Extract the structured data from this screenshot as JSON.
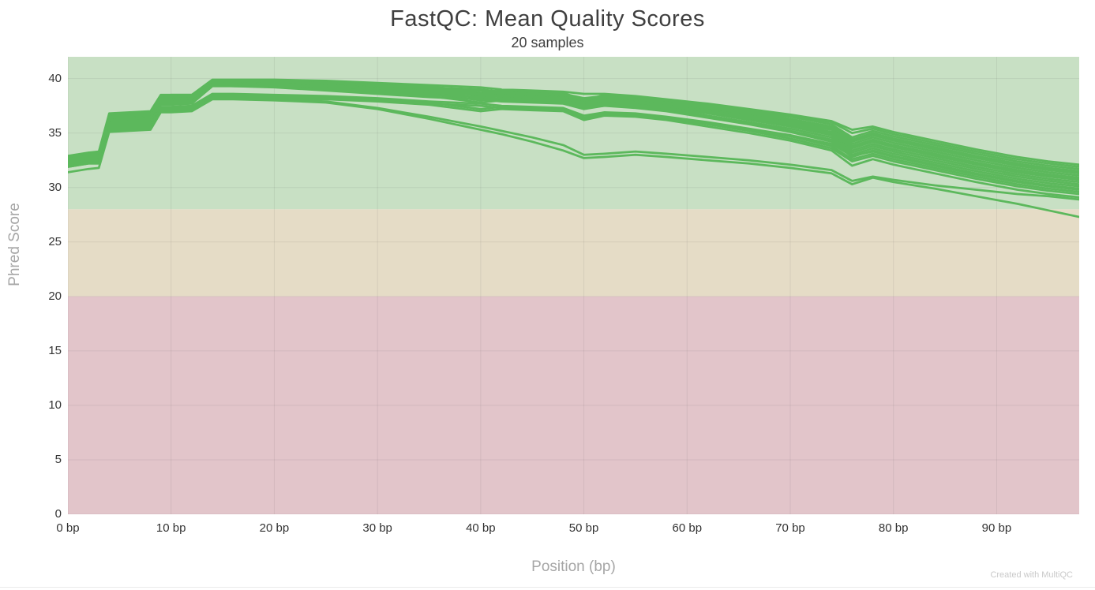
{
  "watermark": "Created with MultiQC",
  "chart_data": {
    "type": "line",
    "title": "FastQC: Mean Quality Scores",
    "subtitle": "20 samples",
    "xlabel": "Position (bp)",
    "ylabel": "Phred Score",
    "xlim": [
      0,
      98
    ],
    "ylim": [
      0,
      42
    ],
    "grid": true,
    "legend": "none",
    "line_color": "#5cb85c",
    "line_width": 2.75,
    "grid_color": "rgba(80,80,80,0.10)",
    "quality_bands": [
      {
        "name": "pass",
        "from": 28,
        "to": 42,
        "color": "#c8e0c4"
      },
      {
        "name": "warn",
        "from": 20,
        "to": 28,
        "color": "#e5dcc6"
      },
      {
        "name": "fail",
        "from": 0,
        "to": 20,
        "color": "#e2c5ca"
      }
    ],
    "y_ticks": [
      {
        "v": 0,
        "label": "0"
      },
      {
        "v": 5,
        "label": "5"
      },
      {
        "v": 10,
        "label": "10"
      },
      {
        "v": 15,
        "label": "15"
      },
      {
        "v": 20,
        "label": "20"
      },
      {
        "v": 25,
        "label": "25"
      },
      {
        "v": 30,
        "label": "30"
      },
      {
        "v": 35,
        "label": "35"
      },
      {
        "v": 40,
        "label": "40"
      }
    ],
    "x_ticks": [
      {
        "v": 0,
        "label": "0 bp"
      },
      {
        "v": 10,
        "label": "10 bp"
      },
      {
        "v": 20,
        "label": "20 bp"
      },
      {
        "v": 30,
        "label": "30 bp"
      },
      {
        "v": 40,
        "label": "40 bp"
      },
      {
        "v": 50,
        "label": "50 bp"
      },
      {
        "v": 60,
        "label": "60 bp"
      },
      {
        "v": 70,
        "label": "70 bp"
      },
      {
        "v": 80,
        "label": "80 bp"
      },
      {
        "v": 90,
        "label": "90 bp"
      }
    ],
    "x": [
      0,
      2,
      3,
      4,
      6,
      8,
      9,
      10,
      12,
      14,
      16,
      20,
      25,
      30,
      35,
      40,
      42,
      45,
      48,
      50,
      52,
      55,
      58,
      62,
      66,
      70,
      74,
      76,
      78,
      80,
      84,
      88,
      92,
      95,
      98
    ],
    "series": [
      {
        "values": [
          32.9,
          33.2,
          33.3,
          36.8,
          36.9,
          37.0,
          38.5,
          38.5,
          38.5,
          39.9,
          39.9,
          39.9,
          39.8,
          39.6,
          39.4,
          39.2,
          39.0,
          38.9,
          38.8,
          38.6,
          38.6,
          38.4,
          38.1,
          37.7,
          37.2,
          36.7,
          36.1,
          35.3,
          35.6,
          35.1,
          34.3,
          33.5,
          32.8,
          32.4,
          32.1
        ]
      },
      {
        "values": [
          32.8,
          33.1,
          33.2,
          36.7,
          36.8,
          36.9,
          38.4,
          38.5,
          38.5,
          39.8,
          39.8,
          39.8,
          39.7,
          39.5,
          39.3,
          38.7,
          38.9,
          38.8,
          38.7,
          38.0,
          38.5,
          38.3,
          38.0,
          37.6,
          37.1,
          36.6,
          36.0,
          35.0,
          35.4,
          34.9,
          34.1,
          33.3,
          32.6,
          32.2,
          31.9
        ]
      },
      {
        "values": [
          32.7,
          33.0,
          33.1,
          36.6,
          36.7,
          36.8,
          38.4,
          38.4,
          38.4,
          39.8,
          39.8,
          39.7,
          39.6,
          39.4,
          39.2,
          39.0,
          38.8,
          38.7,
          38.6,
          38.2,
          38.4,
          38.2,
          37.9,
          37.5,
          37.0,
          36.5,
          35.8,
          34.6,
          35.2,
          34.7,
          33.9,
          33.1,
          32.4,
          32.0,
          31.7
        ]
      },
      {
        "values": [
          32.6,
          32.9,
          33.0,
          36.5,
          36.6,
          36.7,
          38.3,
          38.3,
          38.4,
          39.7,
          39.7,
          39.6,
          39.5,
          39.3,
          39.1,
          38.9,
          38.7,
          38.6,
          38.5,
          38.1,
          38.3,
          38.1,
          37.8,
          37.4,
          36.9,
          36.3,
          35.6,
          34.4,
          35.0,
          34.5,
          33.7,
          32.9,
          32.2,
          31.8,
          31.5
        ]
      },
      {
        "values": [
          32.8,
          33.1,
          33.1,
          36.4,
          36.5,
          36.6,
          38.2,
          38.3,
          38.3,
          39.7,
          39.7,
          39.6,
          39.5,
          39.3,
          39.0,
          38.4,
          38.6,
          38.5,
          38.4,
          37.9,
          38.2,
          38.0,
          37.7,
          37.2,
          36.7,
          36.1,
          35.4,
          34.2,
          34.8,
          34.3,
          33.5,
          32.7,
          32.0,
          31.6,
          31.3
        ]
      },
      {
        "values": [
          32.5,
          32.8,
          32.9,
          36.3,
          36.4,
          36.5,
          38.2,
          38.2,
          38.3,
          39.6,
          39.6,
          39.5,
          39.4,
          39.2,
          38.9,
          38.7,
          38.5,
          38.4,
          38.3,
          37.8,
          38.1,
          37.9,
          37.6,
          37.1,
          36.6,
          36.0,
          35.3,
          34.0,
          34.6,
          34.1,
          33.3,
          32.5,
          31.8,
          31.4,
          31.1
        ]
      },
      {
        "values": [
          32.7,
          33.0,
          33.0,
          36.2,
          36.3,
          36.4,
          38.1,
          38.1,
          38.2,
          39.6,
          39.5,
          39.5,
          39.4,
          39.1,
          38.8,
          38.2,
          38.4,
          38.3,
          38.2,
          37.7,
          38.0,
          37.8,
          37.5,
          37.0,
          36.5,
          35.9,
          35.1,
          33.8,
          34.4,
          33.9,
          33.1,
          32.3,
          31.6,
          31.2,
          30.9
        ]
      },
      {
        "values": [
          32.4,
          32.7,
          32.8,
          36.1,
          36.2,
          36.3,
          38.0,
          38.0,
          38.1,
          39.5,
          39.5,
          39.4,
          39.3,
          39.0,
          38.7,
          38.5,
          38.3,
          38.2,
          38.1,
          37.6,
          37.9,
          37.7,
          37.4,
          36.9,
          36.3,
          35.7,
          34.9,
          33.6,
          34.2,
          33.7,
          32.9,
          32.1,
          31.4,
          31.0,
          30.7
        ]
      },
      {
        "values": [
          32.6,
          32.9,
          32.9,
          36.0,
          36.1,
          36.2,
          37.9,
          37.9,
          38.0,
          39.5,
          39.4,
          39.4,
          39.2,
          38.9,
          38.6,
          38.0,
          38.2,
          38.1,
          38.0,
          37.5,
          37.8,
          37.6,
          37.3,
          36.8,
          36.2,
          35.6,
          34.8,
          33.4,
          34.0,
          33.5,
          32.7,
          31.9,
          31.2,
          30.8,
          30.5
        ]
      },
      {
        "values": [
          32.3,
          32.6,
          32.7,
          35.9,
          36.0,
          36.1,
          37.8,
          37.8,
          37.9,
          39.4,
          39.4,
          39.3,
          39.1,
          38.8,
          38.5,
          38.3,
          38.1,
          38.0,
          37.9,
          37.4,
          37.7,
          37.5,
          37.2,
          36.6,
          36.0,
          35.4,
          34.6,
          33.2,
          33.8,
          33.3,
          32.5,
          31.7,
          31.0,
          30.6,
          30.3
        ]
      },
      {
        "values": [
          32.5,
          32.8,
          32.8,
          35.8,
          35.9,
          36.0,
          37.7,
          37.7,
          37.8,
          39.4,
          39.3,
          39.3,
          39.0,
          38.7,
          38.4,
          37.8,
          38.0,
          37.9,
          37.8,
          37.3,
          37.6,
          37.4,
          37.1,
          36.5,
          35.9,
          35.2,
          34.4,
          33.0,
          33.6,
          33.1,
          32.3,
          31.5,
          30.8,
          30.4,
          30.1
        ]
      },
      {
        "values": [
          32.2,
          32.5,
          32.6,
          35.7,
          35.8,
          35.9,
          37.6,
          37.6,
          37.7,
          39.3,
          39.3,
          39.2,
          38.9,
          38.6,
          38.3,
          38.1,
          37.9,
          37.8,
          37.7,
          37.2,
          37.5,
          37.3,
          37.0,
          36.4,
          35.8,
          35.1,
          34.2,
          32.8,
          33.4,
          32.9,
          32.1,
          31.3,
          30.6,
          30.2,
          29.9
        ]
      },
      {
        "values": [
          32.1,
          32.4,
          32.5,
          35.6,
          35.7,
          35.8,
          37.4,
          37.4,
          37.5,
          38.6,
          38.6,
          38.5,
          38.4,
          38.2,
          37.9,
          37.7,
          37.5,
          37.4,
          37.3,
          36.6,
          36.9,
          36.8,
          36.5,
          36.0,
          35.4,
          34.8,
          34.0,
          32.9,
          33.3,
          32.8,
          32.0,
          31.2,
          30.5,
          30.1,
          29.8
        ]
      },
      {
        "values": [
          32.0,
          32.3,
          32.4,
          35.5,
          35.6,
          35.7,
          37.3,
          37.3,
          37.4,
          38.5,
          38.5,
          38.4,
          38.3,
          38.1,
          37.8,
          37.2,
          37.4,
          37.3,
          37.2,
          36.4,
          36.8,
          36.7,
          36.4,
          35.9,
          35.3,
          34.7,
          33.8,
          32.6,
          33.1,
          32.6,
          31.8,
          31.0,
          30.3,
          29.9,
          29.6
        ]
      },
      {
        "values": [
          32.0,
          32.3,
          32.3,
          35.4,
          35.5,
          35.6,
          37.2,
          37.2,
          37.3,
          38.4,
          38.4,
          38.3,
          38.2,
          38.0,
          37.7,
          37.5,
          37.3,
          37.2,
          37.1,
          36.3,
          36.7,
          36.6,
          36.3,
          35.8,
          35.2,
          34.5,
          33.6,
          32.4,
          32.9,
          32.4,
          31.6,
          30.8,
          30.1,
          29.7,
          29.4
        ]
      },
      {
        "values": [
          31.9,
          32.2,
          32.2,
          35.3,
          35.4,
          35.5,
          37.1,
          37.1,
          37.2,
          38.3,
          38.3,
          38.2,
          38.1,
          37.9,
          37.6,
          37.0,
          37.2,
          37.1,
          37.0,
          36.2,
          36.6,
          36.5,
          36.2,
          35.6,
          35.0,
          34.3,
          33.4,
          32.0,
          32.6,
          32.1,
          31.3,
          30.5,
          29.8,
          29.4,
          29.1
        ]
      },
      {
        "values": [
          31.9,
          32.2,
          32.2,
          35.2,
          35.3,
          35.4,
          37.0,
          37.0,
          37.1,
          38.2,
          38.2,
          38.1,
          37.9,
          37.3,
          36.5,
          35.6,
          35.2,
          34.6,
          33.9,
          33.0,
          33.1,
          33.3,
          33.1,
          32.8,
          32.5,
          32.1,
          31.6,
          30.6,
          31.0,
          30.7,
          30.2,
          29.8,
          29.4,
          29.2,
          28.9
        ]
      },
      {
        "values": [
          31.4,
          31.7,
          31.8,
          35.1,
          35.2,
          35.3,
          36.9,
          36.9,
          37.0,
          38.1,
          38.1,
          38.0,
          37.8,
          37.2,
          36.3,
          35.3,
          34.9,
          34.2,
          33.4,
          32.7,
          32.8,
          33.0,
          32.8,
          32.5,
          32.2,
          31.8,
          31.3,
          30.3,
          30.9,
          30.5,
          29.9,
          29.2,
          28.5,
          27.9,
          27.3
        ]
      },
      {
        "values": [
          32.8,
          33.1,
          33.2,
          36.5,
          36.6,
          36.7,
          38.3,
          38.3,
          38.4,
          39.8,
          39.8,
          39.7,
          39.6,
          39.4,
          39.1,
          38.6,
          38.7,
          38.6,
          38.5,
          38.1,
          38.3,
          38.1,
          37.8,
          37.3,
          36.8,
          36.2,
          35.5,
          34.4,
          34.9,
          34.4,
          33.6,
          32.8,
          32.1,
          31.7,
          31.4
        ]
      },
      {
        "values": [
          32.4,
          32.7,
          32.8,
          36.2,
          36.3,
          36.4,
          38.1,
          38.1,
          38.2,
          39.5,
          39.5,
          39.4,
          39.3,
          39.1,
          38.8,
          38.6,
          38.4,
          38.3,
          38.2,
          37.8,
          38.0,
          37.8,
          37.5,
          37.0,
          36.4,
          35.8,
          35.0,
          33.7,
          34.3,
          33.8,
          33.0,
          32.2,
          31.5,
          31.1,
          30.8
        ]
      }
    ]
  }
}
